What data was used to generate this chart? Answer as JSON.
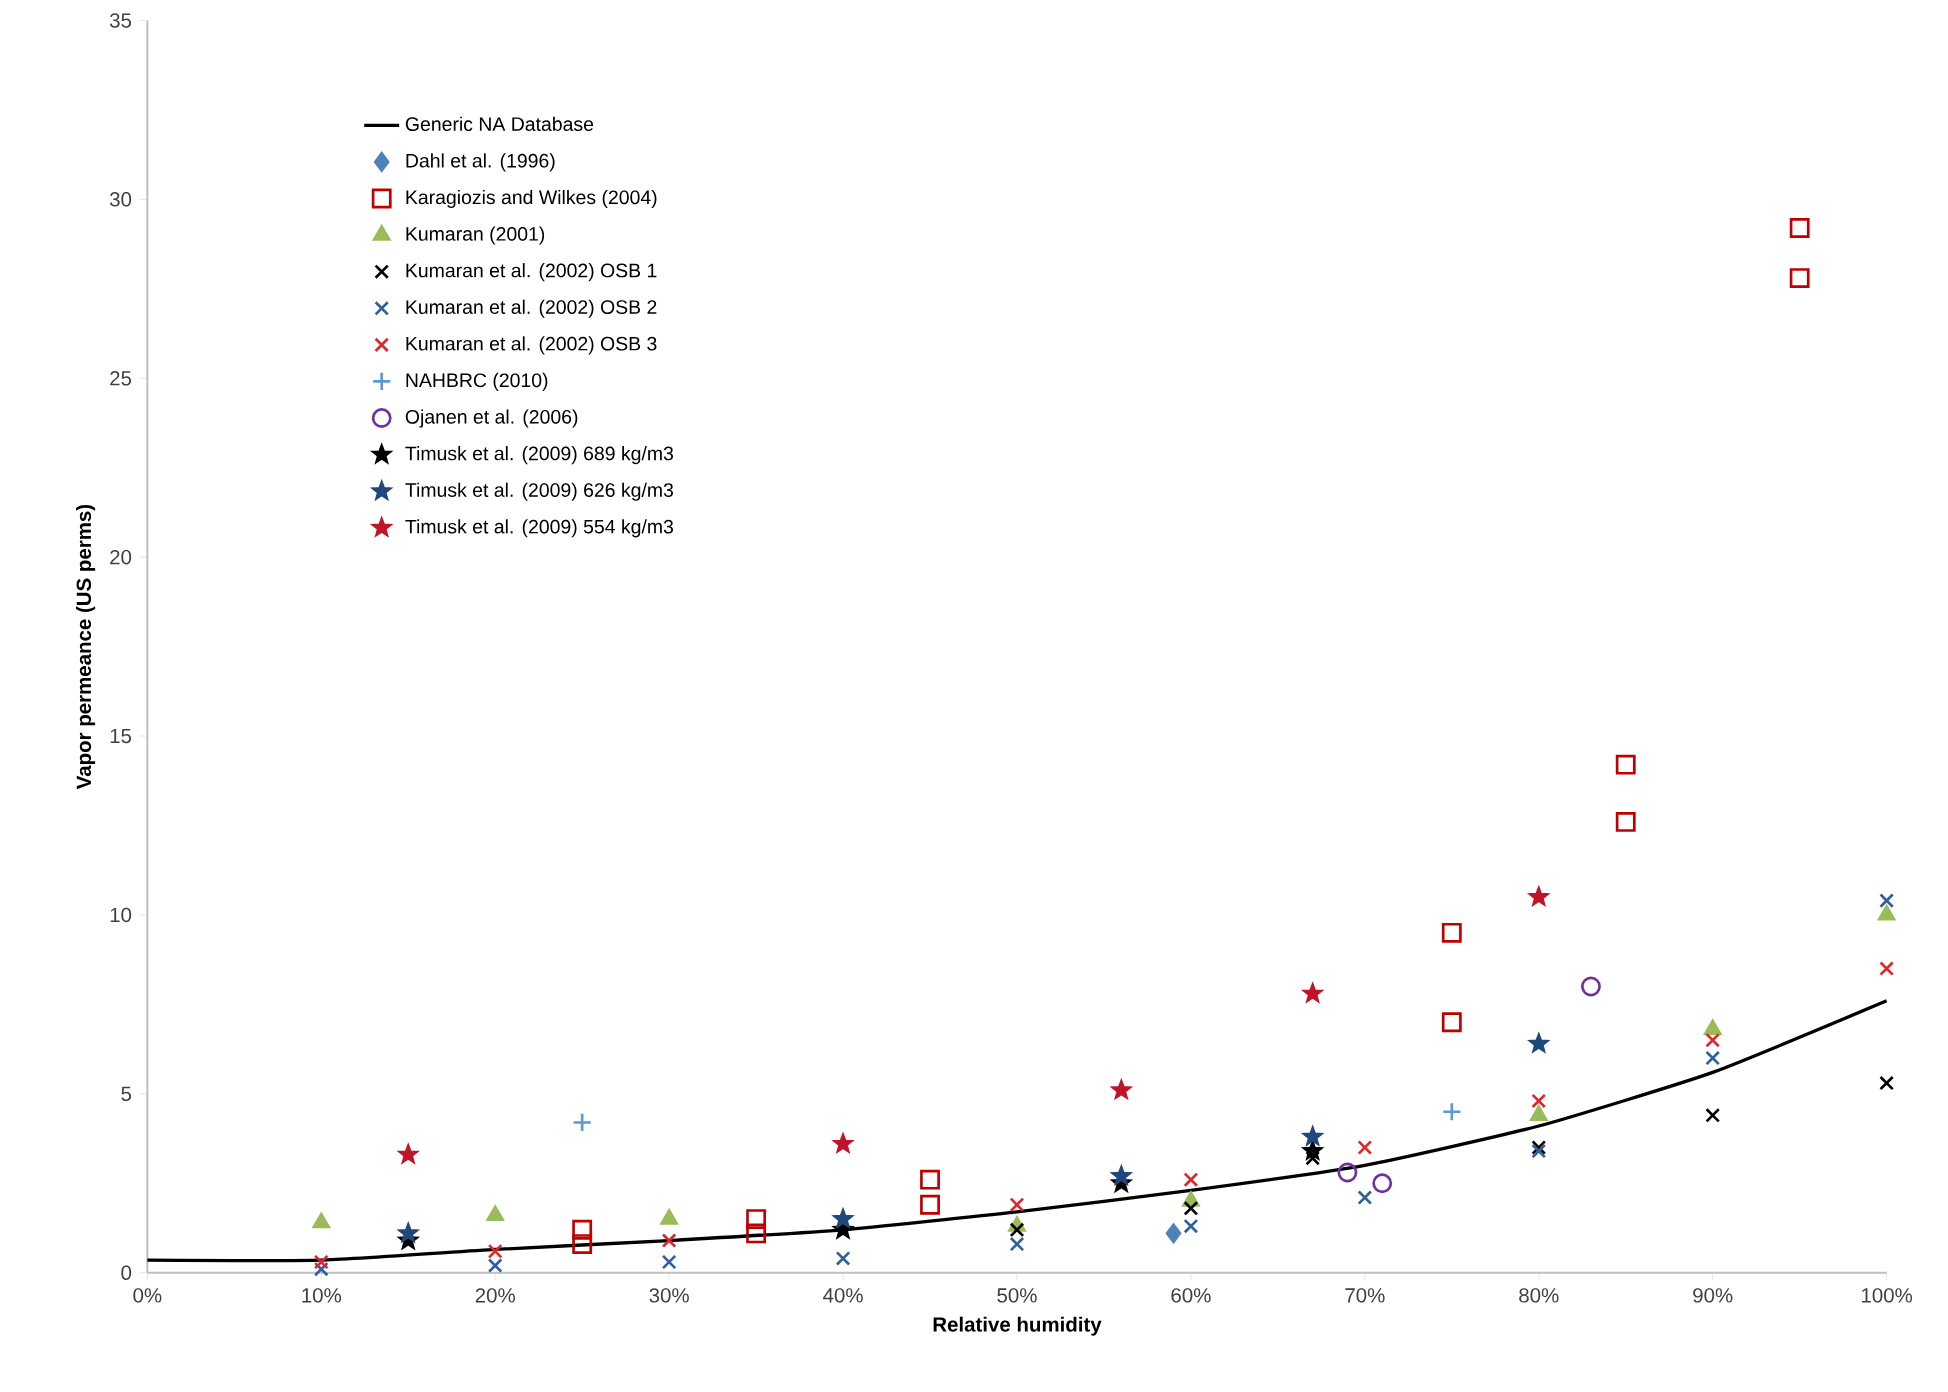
{
  "chart_data": {
    "type": "scatter",
    "xlabel": "Relative humidity",
    "ylabel": "Vapor permeance (US perms)",
    "xlim": [
      0,
      100
    ],
    "ylim": [
      0,
      35
    ],
    "xticks": [
      {
        "value": 0,
        "label": "0%"
      },
      {
        "value": 10,
        "label": "10%"
      },
      {
        "value": 20,
        "label": "20%"
      },
      {
        "value": 30,
        "label": "30%"
      },
      {
        "value": 40,
        "label": "40%"
      },
      {
        "value": 50,
        "label": "50%"
      },
      {
        "value": 60,
        "label": "60%"
      },
      {
        "value": 70,
        "label": "70%"
      },
      {
        "value": 80,
        "label": "80%"
      },
      {
        "value": 90,
        "label": "90%"
      },
      {
        "value": 100,
        "label": "100%"
      }
    ],
    "yticks": [
      0,
      5,
      10,
      15,
      20,
      25,
      30,
      35
    ],
    "legend": "top left",
    "series": [
      {
        "name": "Generic NA Database",
        "type": "line",
        "marker": "none",
        "line_style": "solid",
        "color": "#000000",
        "x": [
          0,
          10,
          20,
          30,
          40,
          50,
          60,
          70,
          80,
          90,
          100
        ],
        "values": [
          0.35,
          0.35,
          0.65,
          0.9,
          1.2,
          1.7,
          2.3,
          3.0,
          4.1,
          5.6,
          7.6
        ]
      },
      {
        "name": "Dahl et al. (1996)",
        "marker": "diamond",
        "color": "#4f81bd",
        "x": [
          59
        ],
        "values": [
          1.1
        ]
      },
      {
        "name": "Karagiozis and Wilkes (2004)",
        "marker": "square",
        "color": "#c00000",
        "x": [
          25,
          25,
          35,
          35,
          45,
          45,
          75,
          75,
          85,
          85,
          95,
          95
        ],
        "values": [
          1.2,
          0.8,
          1.5,
          1.1,
          2.6,
          1.9,
          9.5,
          7.0,
          14.2,
          12.6,
          29.2,
          27.8
        ]
      },
      {
        "name": "Kumaran (2001)",
        "marker": "triangle",
        "color": "#9bbb59",
        "x": [
          10,
          20,
          30,
          50,
          60,
          80,
          90,
          100
        ],
        "values": [
          1.4,
          1.6,
          1.5,
          1.3,
          2.0,
          4.4,
          6.8,
          10.0
        ]
      },
      {
        "name": "Kumaran et al. (2002) OSB 1",
        "marker": "cross",
        "color": "#000000",
        "x": [
          50,
          60,
          67,
          80,
          90,
          100
        ],
        "values": [
          1.2,
          1.8,
          3.2,
          3.5,
          4.4,
          5.3
        ]
      },
      {
        "name": "Kumaran et al. (2002) OSB 2",
        "marker": "cross",
        "color": "#2e5f9e",
        "x": [
          10,
          20,
          30,
          40,
          50,
          60,
          70,
          80,
          90,
          100
        ],
        "values": [
          0.1,
          0.2,
          0.3,
          0.4,
          0.8,
          1.3,
          2.1,
          3.4,
          6.0,
          10.4
        ]
      },
      {
        "name": "Kumaran et al. (2002) OSB 3",
        "marker": "cross",
        "color": "#e0262b",
        "x": [
          10,
          20,
          30,
          40,
          50,
          60,
          70,
          80,
          90,
          100
        ],
        "values": [
          0.3,
          0.6,
          0.9,
          null,
          1.9,
          2.6,
          3.5,
          4.8,
          6.5,
          8.5
        ]
      },
      {
        "name": "NAHBRC (2010)",
        "marker": "plus",
        "color": "#5b9bd5",
        "x": [
          25,
          75
        ],
        "values": [
          4.2,
          4.5
        ]
      },
      {
        "name": "Ojanen et al. (2006)",
        "marker": "circle",
        "color": "#7030a0",
        "x": [
          69,
          71,
          83
        ],
        "values": [
          2.8,
          2.5,
          8.0
        ]
      },
      {
        "name": "Timusk et al. (2009) 689 kg/m3",
        "marker": "star",
        "color": "#000000",
        "x": [
          15,
          40,
          56,
          67
        ],
        "values": [
          0.9,
          1.2,
          2.5,
          3.4
        ]
      },
      {
        "name": "Timusk et al. (2009) 626 kg/m3",
        "marker": "star",
        "color": "#1f497d",
        "x": [
          15,
          40,
          56,
          67,
          80
        ],
        "values": [
          1.1,
          1.5,
          2.7,
          3.8,
          6.4
        ]
      },
      {
        "name": "Timusk et al. (2009) 554 kg/m3",
        "marker": "star",
        "color": "#c0142a",
        "x": [
          15,
          40,
          56,
          67,
          80
        ],
        "values": [
          3.3,
          3.6,
          5.1,
          7.8,
          10.5
        ]
      }
    ]
  }
}
